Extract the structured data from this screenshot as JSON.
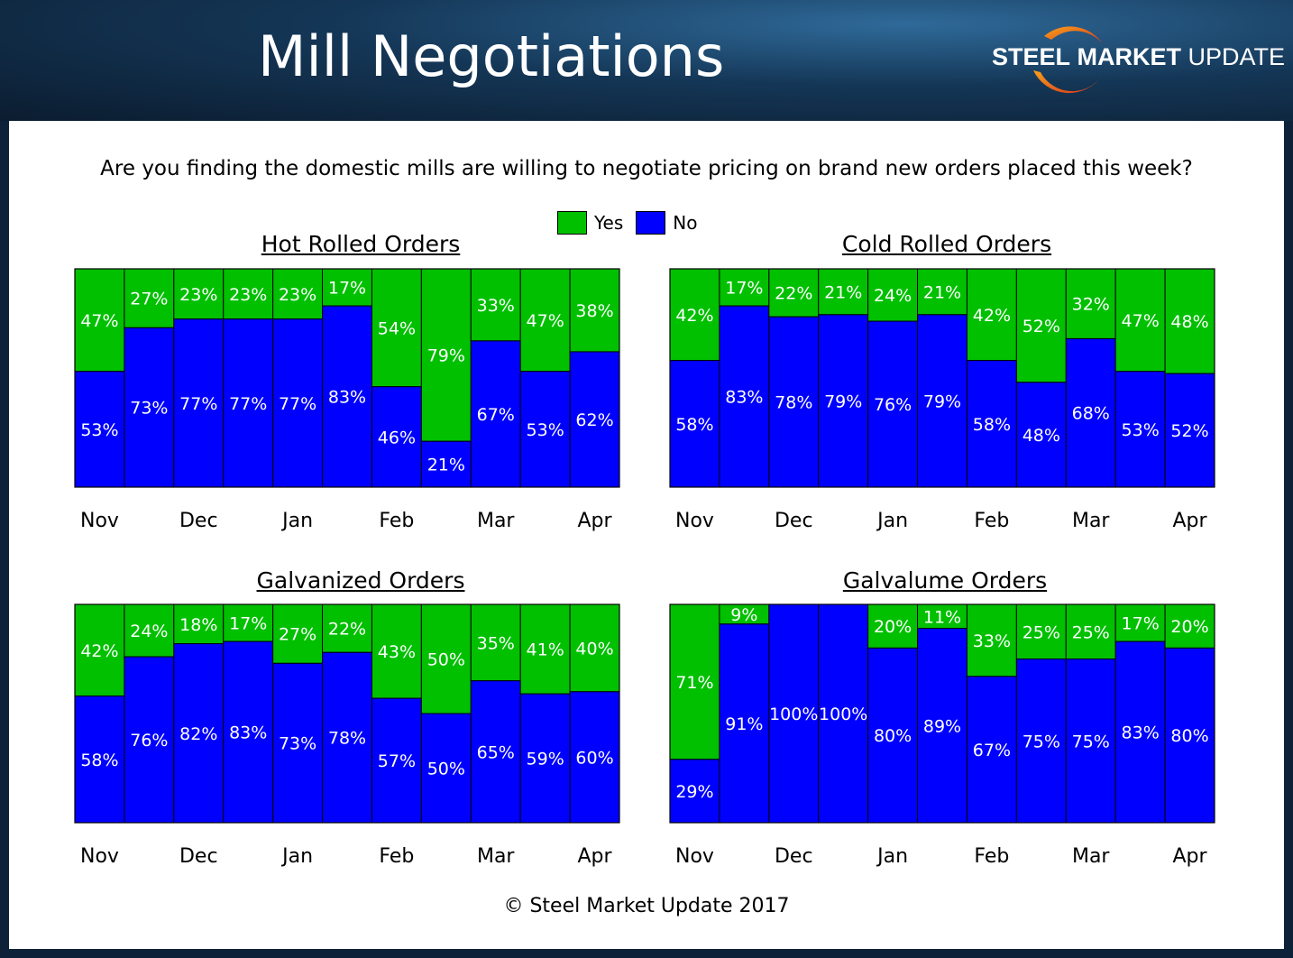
{
  "header": {
    "title": "Mill Negotiations",
    "logo_word1": "STEEL",
    "logo_word2": "MARKET",
    "logo_word3": "UPDATE"
  },
  "question": "Are you finding the domestic mills are willing to negotiate pricing on brand new orders placed this week?",
  "legend": [
    {
      "label": "Yes",
      "color": "#00c000"
    },
    {
      "label": "No",
      "color": "#0000ff"
    }
  ],
  "copyright": "© Steel Market Update 2017",
  "chart_data": [
    {
      "type": "bar",
      "stacked": true,
      "title": "Hot Rolled Orders",
      "ylim": [
        0,
        100
      ],
      "xtick_labels": [
        "Nov",
        "Dec",
        "Jan",
        "Feb",
        "Mar",
        "Apr"
      ],
      "series": [
        {
          "name": "No",
          "values": [
            53,
            73,
            77,
            77,
            77,
            83,
            46,
            21,
            67,
            53,
            62
          ]
        },
        {
          "name": "Yes",
          "values": [
            47,
            27,
            23,
            23,
            23,
            17,
            54,
            79,
            33,
            47,
            38
          ]
        }
      ]
    },
    {
      "type": "bar",
      "stacked": true,
      "title": "Cold Rolled Orders",
      "ylim": [
        0,
        100
      ],
      "xtick_labels": [
        "Nov",
        "Dec",
        "Jan",
        "Feb",
        "Mar",
        "Apr"
      ],
      "series": [
        {
          "name": "No",
          "values": [
            58,
            83,
            78,
            79,
            76,
            79,
            58,
            48,
            68,
            53,
            52
          ]
        },
        {
          "name": "Yes",
          "values": [
            42,
            17,
            22,
            21,
            24,
            21,
            42,
            52,
            32,
            47,
            48
          ]
        }
      ]
    },
    {
      "type": "bar",
      "stacked": true,
      "title": "Galvanized Orders",
      "ylim": [
        0,
        100
      ],
      "xtick_labels": [
        "Nov",
        "Dec",
        "Jan",
        "Feb",
        "Mar",
        "Apr"
      ],
      "series": [
        {
          "name": "No",
          "values": [
            58,
            76,
            82,
            83,
            73,
            78,
            57,
            50,
            65,
            59,
            60
          ]
        },
        {
          "name": "Yes",
          "values": [
            42,
            24,
            18,
            17,
            27,
            22,
            43,
            50,
            35,
            41,
            40
          ]
        }
      ]
    },
    {
      "type": "bar",
      "stacked": true,
      "title": "Galvalume Orders",
      "ylim": [
        0,
        100
      ],
      "xtick_labels": [
        "Nov",
        "Dec",
        "Jan",
        "Feb",
        "Mar",
        "Apr"
      ],
      "series": [
        {
          "name": "No",
          "values": [
            29,
            91,
            100,
            100,
            80,
            89,
            67,
            75,
            75,
            83,
            80
          ]
        },
        {
          "name": "Yes",
          "values": [
            71,
            9,
            0,
            0,
            20,
            11,
            33,
            25,
            25,
            17,
            20
          ]
        }
      ]
    }
  ]
}
